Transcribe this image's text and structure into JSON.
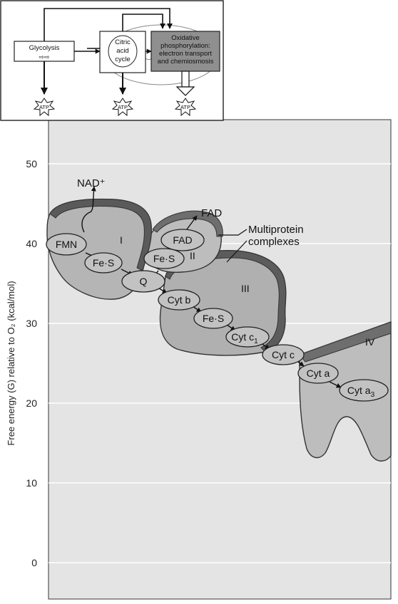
{
  "axis": {
    "label": "Free energy (G) relative to O₂ (kcal/mol)",
    "ticks": [
      "50",
      "40",
      "30",
      "20",
      "10",
      "0"
    ]
  },
  "complexes": {
    "I": "I",
    "II": "II",
    "III": "III",
    "IV": "IV"
  },
  "carriers": {
    "fmn": "FMN",
    "fes1": "Fe·S",
    "fad": "FAD",
    "fes2": "Fe·S",
    "q": "Q",
    "cytb": "Cyt b",
    "fes3": "Fe·S",
    "cytc1_main": "Cyt c",
    "cytc1_sub": "1",
    "cytc": "Cyt c",
    "cyta": "Cyt a",
    "cyta3_main": "Cyt a",
    "cyta3_sub": "3"
  },
  "labels": {
    "nad": "NAD⁺",
    "fad_out": "FAD",
    "multiprotein_line1": "Multiprotein",
    "multiprotein_line2": "complexes"
  },
  "inset": {
    "glycolysis": "Glycolysis",
    "citric_1": "Citric",
    "citric_2": "acid",
    "citric_3": "cycle",
    "oxphos_1": "Oxidative",
    "oxphos_2": "phosphorylation:",
    "oxphos_3": "electron transport",
    "oxphos_4": "and chemiosmosis",
    "atp": "ATP"
  }
}
